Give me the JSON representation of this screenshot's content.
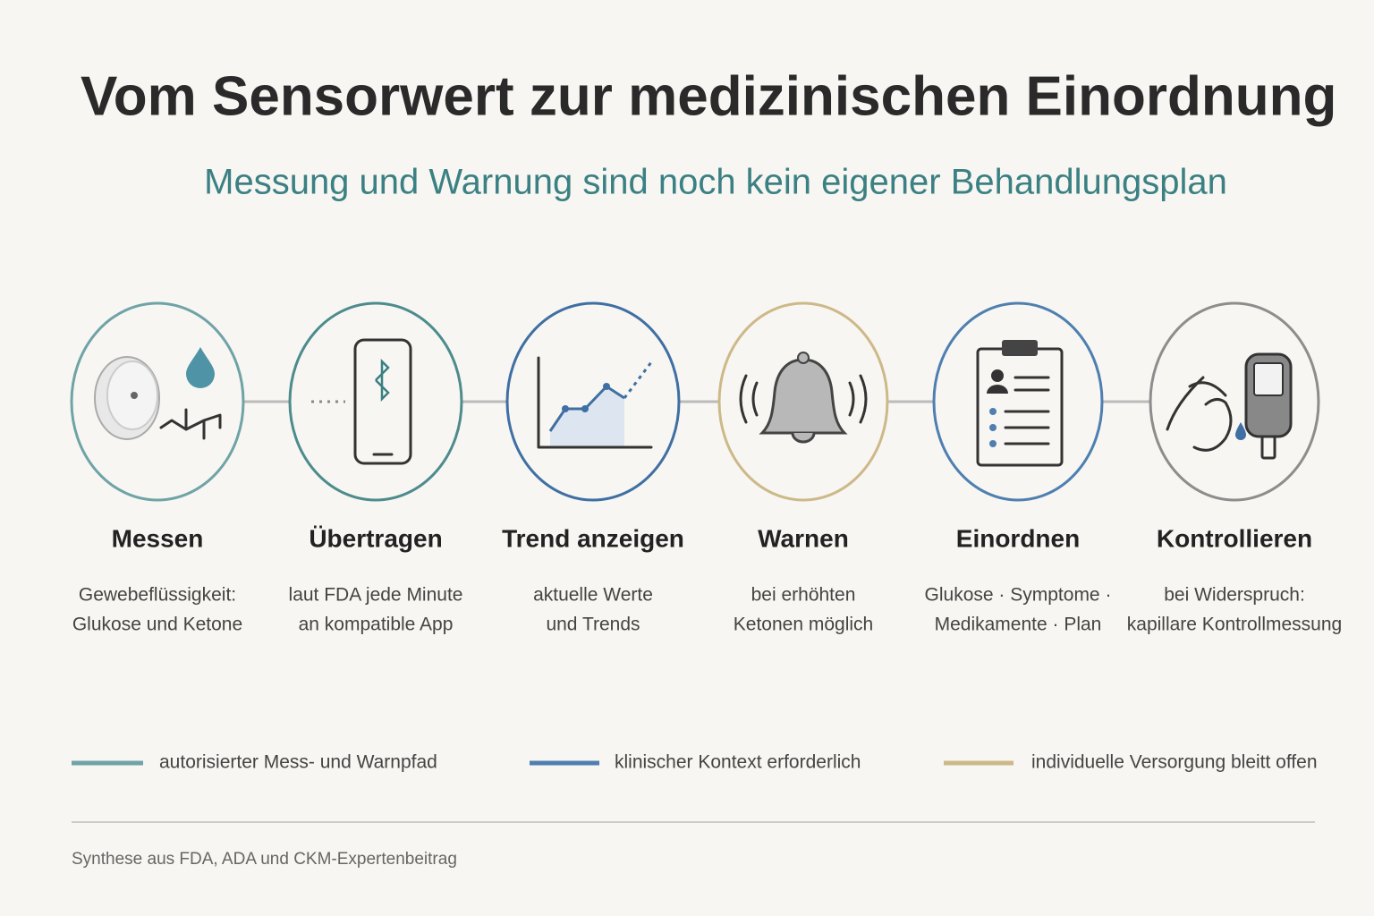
{
  "header": {
    "title": "Vom Sensorwert zur medizinischen Einordnung",
    "subtitle": "Messung und Warnung sind noch kein eigener Behandlungsplan"
  },
  "steps": [
    {
      "label": "Messen",
      "lines": [
        "Gewebeflüssigkeit:",
        "Glukose und Ketone"
      ]
    },
    {
      "label": "Übertragen",
      "lines": [
        "laut FDA jede Minute",
        "an kompatible App"
      ]
    },
    {
      "label": "Trend anzeigen",
      "lines": [
        "aktuelle Werte",
        "und Trends"
      ]
    },
    {
      "label": "Warnen",
      "lines": [
        "bei erhöhten",
        "Ketonen möglich"
      ]
    },
    {
      "label": "Einordnen",
      "lines": [
        "Glukose · Symptome ·",
        "Medikamente · Plan"
      ]
    },
    {
      "label": "Kontrollieren",
      "lines": [
        "bei Widerspruch:",
        "kapillare Kontrollmessung"
      ]
    }
  ],
  "legend": [
    "autorisierter Mess- und Warnpfad",
    "klinischer Kontext erforderlich",
    "individuelle Versorgung bleitt offen"
  ],
  "footer": "Synthese aus FDA, ADA und CKM-Expertenbeitrag"
}
